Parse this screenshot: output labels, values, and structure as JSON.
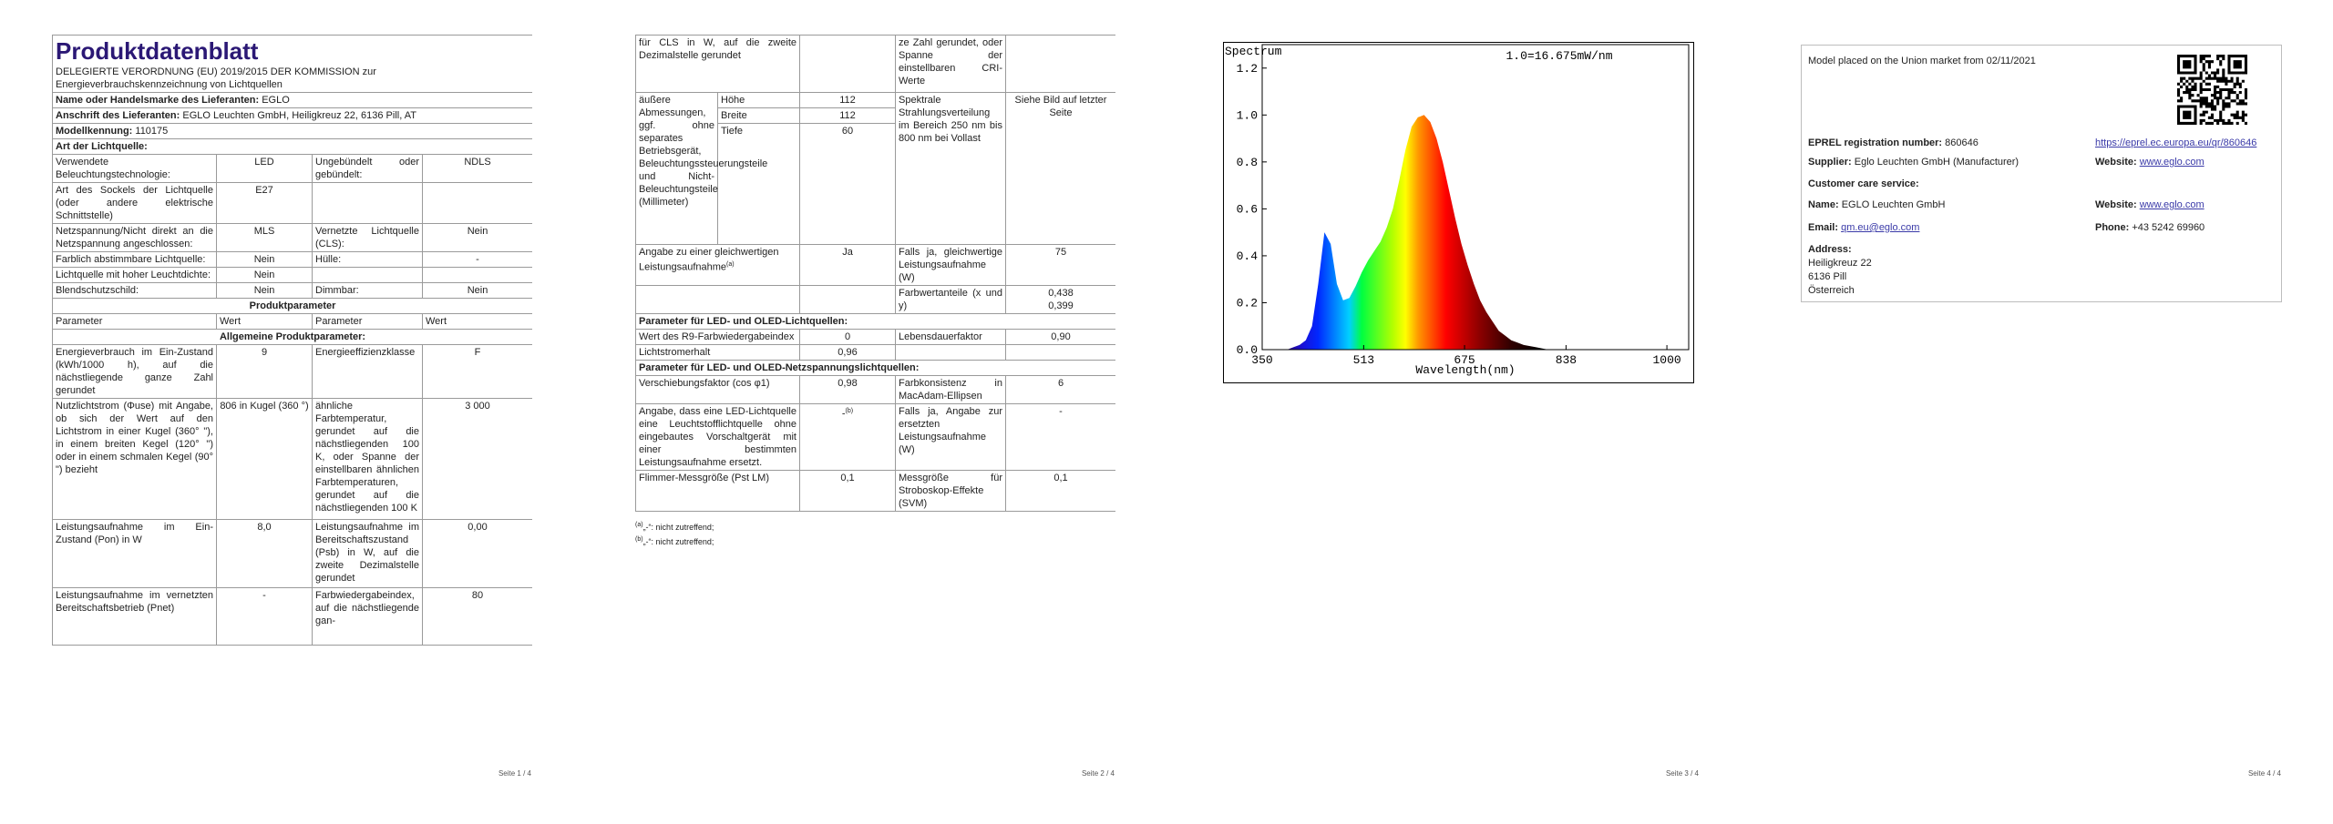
{
  "page1": {
    "title": "Produktdatenblatt",
    "regulation": "DELEGIERTE VERORDNUNG (EU) 2019/2015 DER KOMMISSION zur Energieverbrauchskennzeichnung von Lichtquellen",
    "supplier_name": {
      "label": "Name oder Handelsmarke des Lieferanten:",
      "value": "EGLO"
    },
    "supplier_address": {
      "label": "Anschrift des Lieferanten:",
      "value": "EGLO Leuchten GmbH, Heiligkreuz 22, 6136 Pill, AT"
    },
    "model": {
      "label": "Modellkennung:",
      "value": "110175"
    },
    "light_source_heading": "Art der Lichtquelle:",
    "light_source_rows": [
      [
        "Verwendete Beleuchtungstechnologie:",
        "LED",
        "Ungebündelt oder gebündelt:",
        "NDLS"
      ],
      [
        "Art des Sockels der Lichtquelle (oder andere elektrische Schnittstelle)",
        "E27"
      ],
      [
        "Netzspannung/Nicht direkt an die Netzspannung angeschlossen:",
        "MLS",
        "Vernetzte Lichtquelle (CLS):",
        "Nein"
      ],
      [
        "Farblich abstimmbare Lichtquelle:",
        "Nein",
        "Hülle:",
        "-"
      ],
      [
        "Lichtquelle mit hoher Leuchtdichte:",
        "Nein"
      ],
      [
        "Blendschutzschild:",
        "Nein",
        "Dimmbar:",
        "Nein"
      ]
    ],
    "product_parameters_heading": "Produktparameter",
    "column_headers": [
      "Parameter",
      "Wert",
      "Parameter",
      "Wert"
    ],
    "general_heading": "Allgemeine Produktparameter:",
    "rows": [
      [
        "Energieverbrauch im Ein-Zustand (kWh/1000 h), auf die nächstliegende ganze Zahl gerundet",
        "9",
        "Energieeffizienzklasse",
        "F"
      ],
      [
        "Nutzlichtstrom (Φuse) mit Angabe, ob sich der Wert auf den Lichtstrom in einer Kugel (360° \"), in einem breiten Kegel (120° \") oder in einem schmalen Kegel (90° \") bezieht",
        "806 in Kugel (360 °)",
        "ähnliche Farbtemperatur, gerundet auf die nächstliegenden 100 K, oder Spanne der einstellbaren ähnlichen Farbtemperaturen, gerundet auf die nächstliegenden 100 K",
        "3 000"
      ],
      [
        "Leistungsaufnahme im Ein-Zustand (Pon) in W",
        "8,0",
        "Leistungsaufnahme im Bereitschaftszustand (Psb) in W, auf die zweite Dezimalstelle gerundet",
        "0,00"
      ],
      [
        "Leistungsaufnahme im vernetzten Bereitschaftsbetrieb (Pnet)",
        "-",
        "Farbwiedergabeindex, auf die nächstliegende gan-",
        "80"
      ]
    ],
    "page_number": "Seite 1 / 4"
  },
  "page2": {
    "continued": [
      "für CLS in W, auf die zweite Dezimalstelle gerundet",
      "ze Zahl gerundet, oder Spanne der einstellbaren CRI-Werte"
    ],
    "dimensions": {
      "label": "äußere Abmessungen, ggf. ohne separates Betriebsgerät, Beleuchtungssteuerungsteile und Nicht-Beleuchtungsteile (Millimeter)",
      "items": [
        [
          "Höhe",
          "112"
        ],
        [
          "Breite",
          "112"
        ],
        [
          "Tiefe",
          "60"
        ]
      ],
      "spectrum_label": "Spektrale Strahlungsverteilung im Bereich 250 nm bis 800 nm bei Vollast",
      "spectrum_value": "Siehe Bild auf letzter Seite"
    },
    "equivalent": {
      "label": "Angabe zu einer gleichwertigen Leistungsaufnahme",
      "note": "(a)",
      "value": "Ja",
      "label2": "Falls ja, gleichwertige Leistungsaufnahme (W)",
      "value2": "75"
    },
    "chromaticity": {
      "label": "Farbwertanteile (x und y)",
      "values": [
        "0,438",
        "0,399"
      ]
    },
    "led_heading": "Parameter für LED- und OLED-Lichtquellen:",
    "led_rows": [
      [
        "Wert des R9-Farbwiedergabeindex",
        "0",
        "Lebensdauerfaktor",
        "0,90"
      ],
      [
        "Lichtstromerhalt",
        "0,96"
      ]
    ],
    "mains_heading": "Parameter für LED- und OLED-Netzspannungslichtquellen:",
    "mains_rows": [
      [
        "Verschiebungsfaktor (cos φ1)",
        "0,98",
        "Farbkonsistenz in MacAdam-Ellipsen",
        "6"
      ],
      [
        "Angabe, dass eine LED-Lichtquelle eine Leuchtstofflichtquelle ohne eingebautes Vorschaltgerät mit einer bestimmten Leistungsaufnahme ersetzt.",
        "-",
        "Falls ja, Angabe zur ersetzten Leistungsaufnahme (W)",
        "-"
      ],
      [
        "Flimmer-Messgröße (Pst LM)",
        "0,1",
        "Messgröße für Stroboskop-Effekte (SVM)",
        "0,1"
      ]
    ],
    "replacement_note": "(b)",
    "footnotes": [
      {
        "marker": "(a)",
        "text": "„-“: nicht zutreffend;"
      },
      {
        "marker": "(b)",
        "text": "„-“: nicht zutreffend;"
      }
    ],
    "page_number": "Seite 2 / 4"
  },
  "page3": {
    "chart_data": {
      "type": "area",
      "title": "Spectrum",
      "annotation": "1.0=16.675mW/nm",
      "x_label": "Wavelength(nm)",
      "x": [
        350,
        380,
        390,
        400,
        410,
        420,
        430,
        440,
        450,
        460,
        470,
        480,
        490,
        500,
        510,
        520,
        530,
        540,
        550,
        560,
        570,
        580,
        590,
        600,
        610,
        620,
        630,
        640,
        650,
        660,
        670,
        680,
        690,
        700,
        710,
        720,
        730,
        740,
        750,
        760,
        770,
        780,
        790,
        800,
        810,
        1000
      ],
      "values": [
        0,
        0,
        0,
        0.01,
        0.02,
        0.04,
        0.1,
        0.28,
        0.5,
        0.45,
        0.28,
        0.21,
        0.22,
        0.27,
        0.33,
        0.38,
        0.42,
        0.46,
        0.52,
        0.6,
        0.72,
        0.85,
        0.95,
        0.99,
        1.0,
        0.97,
        0.9,
        0.8,
        0.68,
        0.56,
        0.45,
        0.36,
        0.28,
        0.21,
        0.16,
        0.12,
        0.08,
        0.06,
        0.04,
        0.03,
        0.02,
        0.015,
        0.01,
        0.005,
        0,
        0
      ],
      "xlim": [
        350,
        1035
      ],
      "ylim": [
        0,
        1.3
      ],
      "xticks": [
        350,
        513,
        675,
        838,
        1000
      ],
      "yticks": [
        {
          "value": 0,
          "label": "0.0"
        },
        0.2,
        0.4,
        0.6,
        0.8,
        {
          "value": 1,
          "label": "1.0"
        },
        1.2
      ]
    },
    "page_number": "Seite 3 / 4"
  },
  "page4": {
    "market_date": "Model placed on the Union market from 02/11/2021",
    "eprel": {
      "label": "EPREL registration number:",
      "value": "860646",
      "link": "https://eprel.ec.europa.eu/qr/860646"
    },
    "supplier": {
      "label": "Supplier:",
      "value": "Eglo Leuchten GmbH (Manufacturer)",
      "website_label": "Website:",
      "website": "www.eglo.com"
    },
    "customer_care_heading": "Customer care service:",
    "name": {
      "label": "Name:",
      "value": "EGLO Leuchten GmbH",
      "website_label": "Website:",
      "website": "www.eglo.com"
    },
    "email": {
      "label": "Email:",
      "value": "qm.eu@eglo.com",
      "phone_label": "Phone:",
      "phone": "+43 5242 69960"
    },
    "address": {
      "label": "Address:",
      "lines": [
        "Heiligkreuz 22",
        "6136 Pill",
        "Österreich"
      ]
    },
    "page_number": "Seite 4 / 4"
  }
}
